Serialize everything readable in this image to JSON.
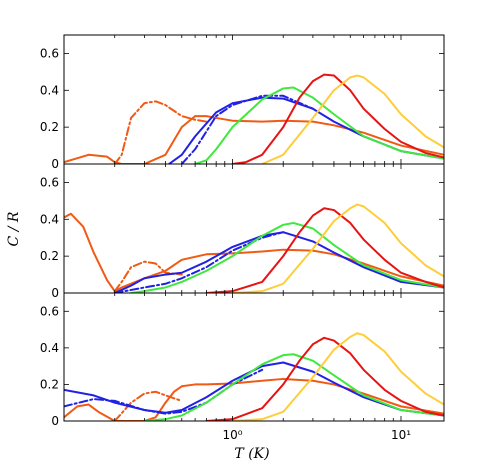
{
  "chart_data": {
    "type": "line",
    "xscale": "log",
    "xlim": [
      0.1,
      18
    ],
    "xlabel": "T (K)",
    "ylabel": "C / R",
    "x_ticks": [
      {
        "value": 1,
        "label": "10⁰"
      },
      {
        "value": 10,
        "label": "10¹"
      }
    ],
    "colors": {
      "orange": "#f05a14",
      "blue": "#2121e6",
      "green": "#3fe83f",
      "red": "#e61414",
      "yellow": "#ffcd3a"
    },
    "panels": [
      {
        "ylim": [
          0,
          0.7
        ],
        "y_ticks": [
          0,
          0.2,
          0.4,
          0.6
        ],
        "series": [
          {
            "color": "orange",
            "style": "solid",
            "x": [
              0.1,
              0.14,
              0.18,
              0.2,
              0.22,
              0.3,
              0.4,
              0.5,
              0.6,
              0.7,
              0.8,
              1.0,
              1.5,
              2.0,
              3.0,
              4.0,
              6.0,
              10.0,
              18.0
            ],
            "y": [
              0.01,
              0.05,
              0.04,
              0.01,
              0.0,
              0.0,
              0.05,
              0.2,
              0.26,
              0.26,
              0.25,
              0.235,
              0.23,
              0.235,
              0.23,
              0.21,
              0.17,
              0.1,
              0.05
            ]
          },
          {
            "color": "orange",
            "style": "dashdot",
            "x": [
              0.2,
              0.22,
              0.25,
              0.3,
              0.35,
              0.4,
              0.5,
              0.6,
              0.7
            ],
            "y": [
              0.0,
              0.05,
              0.25,
              0.33,
              0.34,
              0.32,
              0.26,
              0.24,
              0.23
            ]
          },
          {
            "color": "blue",
            "style": "solid",
            "x": [
              0.42,
              0.5,
              0.6,
              0.8,
              1.0,
              1.5,
              2.0,
              3.0,
              4.0,
              6.0,
              10.0,
              18.0
            ],
            "y": [
              0.0,
              0.05,
              0.15,
              0.28,
              0.33,
              0.36,
              0.355,
              0.3,
              0.23,
              0.15,
              0.07,
              0.03
            ]
          },
          {
            "color": "blue",
            "style": "dashdot",
            "x": [
              0.5,
              0.6,
              0.8,
              1.0,
              1.5,
              2.0,
              3.0
            ],
            "y": [
              0.0,
              0.08,
              0.26,
              0.32,
              0.37,
              0.37,
              0.3
            ]
          },
          {
            "color": "green",
            "style": "solid",
            "x": [
              0.6,
              0.7,
              0.8,
              1.0,
              1.5,
              2.0,
              2.3,
              3.0,
              4.0,
              6.0,
              10.0,
              18.0
            ],
            "y": [
              0.0,
              0.02,
              0.08,
              0.2,
              0.35,
              0.41,
              0.415,
              0.36,
              0.27,
              0.15,
              0.07,
              0.03
            ]
          },
          {
            "color": "red",
            "style": "solid",
            "x": [
              1.0,
              1.2,
              1.5,
              2.0,
              2.5,
              3.0,
              3.5,
              4.0,
              5.0,
              6.0,
              8.0,
              10.0,
              14.0,
              18.0
            ],
            "y": [
              0.0,
              0.01,
              0.05,
              0.2,
              0.36,
              0.45,
              0.485,
              0.48,
              0.4,
              0.3,
              0.19,
              0.12,
              0.06,
              0.035
            ]
          },
          {
            "color": "yellow",
            "style": "solid",
            "x": [
              1.5,
              2.0,
              3.0,
              4.0,
              5.0,
              5.5,
              6.0,
              8.0,
              10.0,
              14.0,
              18.0
            ],
            "y": [
              0.0,
              0.05,
              0.25,
              0.4,
              0.47,
              0.48,
              0.47,
              0.38,
              0.27,
              0.15,
              0.09
            ]
          }
        ]
      },
      {
        "ylim": [
          0,
          0.7
        ],
        "y_ticks": [
          0,
          0.2,
          0.4,
          0.6
        ],
        "series": [
          {
            "color": "orange",
            "style": "solid",
            "x": [
              0.1,
              0.11,
              0.13,
              0.15,
              0.18,
              0.2,
              0.22,
              0.3,
              0.4,
              0.5,
              0.7,
              1.0,
              1.5,
              2.0,
              3.0,
              4.0,
              6.0,
              10.0,
              18.0
            ],
            "y": [
              0.41,
              0.43,
              0.36,
              0.22,
              0.07,
              0.01,
              0.03,
              0.08,
              0.12,
              0.18,
              0.21,
              0.215,
              0.225,
              0.235,
              0.23,
              0.21,
              0.16,
              0.09,
              0.04
            ]
          },
          {
            "color": "orange",
            "style": "dashdot",
            "x": [
              0.2,
              0.22,
              0.25,
              0.3,
              0.35,
              0.4,
              0.5
            ],
            "y": [
              0.01,
              0.06,
              0.14,
              0.17,
              0.16,
              0.11,
              0.1
            ]
          },
          {
            "color": "blue",
            "style": "solid",
            "x": [
              0.2,
              0.25,
              0.3,
              0.4,
              0.5,
              0.7,
              1.0,
              1.5,
              2.0,
              3.0,
              4.0,
              6.0,
              10.0,
              18.0
            ],
            "y": [
              0.0,
              0.04,
              0.08,
              0.1,
              0.11,
              0.17,
              0.25,
              0.31,
              0.33,
              0.28,
              0.22,
              0.14,
              0.06,
              0.03
            ]
          },
          {
            "color": "blue",
            "style": "dashdot",
            "x": [
              0.2,
              0.3,
              0.4,
              0.5,
              0.7,
              1.0,
              1.5,
              2.0
            ],
            "y": [
              0.0,
              0.03,
              0.05,
              0.08,
              0.14,
              0.23,
              0.3,
              0.33
            ]
          },
          {
            "color": "green",
            "style": "solid",
            "x": [
              0.25,
              0.3,
              0.4,
              0.5,
              0.7,
              1.0,
              1.5,
              2.0,
              2.3,
              3.0,
              4.0,
              6.0,
              10.0,
              18.0
            ],
            "y": [
              0.0,
              0.01,
              0.03,
              0.06,
              0.12,
              0.2,
              0.31,
              0.37,
              0.38,
              0.35,
              0.26,
              0.15,
              0.07,
              0.03
            ]
          },
          {
            "color": "red",
            "style": "solid",
            "x": [
              0.7,
              1.0,
              1.5,
              2.0,
              2.5,
              3.0,
              3.5,
              4.0,
              5.0,
              6.0,
              8.0,
              10.0,
              14.0,
              18.0
            ],
            "y": [
              0.0,
              0.01,
              0.06,
              0.2,
              0.33,
              0.42,
              0.46,
              0.45,
              0.38,
              0.29,
              0.18,
              0.11,
              0.06,
              0.03
            ]
          },
          {
            "color": "yellow",
            "style": "solid",
            "x": [
              1.0,
              1.5,
              2.0,
              3.0,
              4.0,
              5.0,
              5.5,
              6.0,
              8.0,
              10.0,
              14.0,
              18.0
            ],
            "y": [
              0.0,
              0.01,
              0.05,
              0.24,
              0.39,
              0.46,
              0.48,
              0.47,
              0.38,
              0.27,
              0.15,
              0.09
            ]
          }
        ]
      },
      {
        "ylim": [
          0,
          0.7
        ],
        "y_ticks": [
          0,
          0.2,
          0.4,
          0.6
        ],
        "series": [
          {
            "color": "orange",
            "style": "solid",
            "x": [
              0.1,
              0.12,
              0.14,
              0.16,
              0.2,
              0.3,
              0.35,
              0.4,
              0.45,
              0.5,
              0.6,
              0.7,
              1.0,
              1.5,
              2.0,
              3.0,
              4.0,
              6.0,
              10.0,
              18.0
            ],
            "y": [
              0.02,
              0.08,
              0.09,
              0.05,
              0.0,
              0.0,
              0.02,
              0.1,
              0.16,
              0.19,
              0.2,
              0.2,
              0.205,
              0.22,
              0.23,
              0.22,
              0.2,
              0.15,
              0.08,
              0.04
            ]
          },
          {
            "color": "orange",
            "style": "dashdot",
            "x": [
              0.2,
              0.25,
              0.3,
              0.35,
              0.4,
              0.5
            ],
            "y": [
              0.0,
              0.1,
              0.15,
              0.16,
              0.14,
              0.11
            ]
          },
          {
            "color": "blue",
            "style": "solid",
            "x": [
              0.1,
              0.15,
              0.2,
              0.3,
              0.4,
              0.5,
              0.7,
              1.0,
              1.5,
              2.0,
              3.0,
              4.0,
              6.0,
              10.0,
              18.0
            ],
            "y": [
              0.17,
              0.14,
              0.1,
              0.06,
              0.045,
              0.06,
              0.13,
              0.22,
              0.3,
              0.32,
              0.27,
              0.21,
              0.13,
              0.06,
              0.03
            ]
          },
          {
            "color": "blue",
            "style": "dashdot",
            "x": [
              0.1,
              0.15,
              0.2,
              0.3,
              0.4,
              0.5,
              0.7,
              1.0,
              1.5
            ],
            "y": [
              0.08,
              0.12,
              0.11,
              0.06,
              0.04,
              0.05,
              0.1,
              0.2,
              0.28
            ]
          },
          {
            "color": "green",
            "style": "solid",
            "x": [
              0.3,
              0.4,
              0.5,
              0.7,
              1.0,
              1.5,
              2.0,
              2.3,
              3.0,
              4.0,
              6.0,
              10.0,
              18.0
            ],
            "y": [
              0.0,
              0.01,
              0.03,
              0.1,
              0.2,
              0.31,
              0.36,
              0.365,
              0.33,
              0.25,
              0.14,
              0.06,
              0.03
            ]
          },
          {
            "color": "red",
            "style": "solid",
            "x": [
              0.7,
              1.0,
              1.5,
              2.0,
              2.5,
              3.0,
              3.5,
              4.0,
              5.0,
              6.0,
              8.0,
              10.0,
              14.0,
              18.0
            ],
            "y": [
              0.0,
              0.01,
              0.07,
              0.2,
              0.33,
              0.42,
              0.455,
              0.44,
              0.37,
              0.28,
              0.17,
              0.11,
              0.05,
              0.03
            ]
          },
          {
            "color": "yellow",
            "style": "solid",
            "x": [
              1.0,
              1.5,
              2.0,
              3.0,
              4.0,
              5.0,
              5.5,
              6.0,
              8.0,
              10.0,
              14.0,
              18.0
            ],
            "y": [
              0.0,
              0.01,
              0.05,
              0.24,
              0.39,
              0.46,
              0.48,
              0.47,
              0.38,
              0.27,
              0.15,
              0.09
            ]
          }
        ]
      }
    ]
  }
}
